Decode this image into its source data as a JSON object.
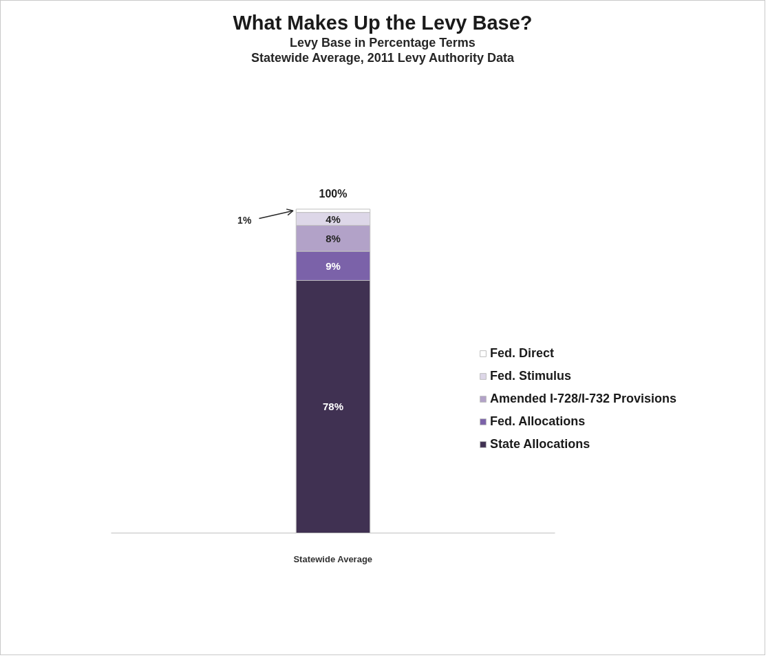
{
  "chart_data": {
    "type": "bar",
    "title": "What Makes Up the Levy Base?",
    "subtitle": "Levy Base in Percentage Terms\nStatewide Average, 2011 Levy Authority Data",
    "categories": [
      "Statewide Average"
    ],
    "stacked": true,
    "series": [
      {
        "name": "State Allocations",
        "color": "#403152",
        "values": [
          78
        ],
        "value_labels": [
          "78%"
        ]
      },
      {
        "name": "Fed. Allocations",
        "color": "#7b62a9",
        "values": [
          9
        ],
        "value_labels": [
          "9%"
        ]
      },
      {
        "name": "Amended I-728/I-732 Provisions",
        "color": "#b2a2c8",
        "values": [
          8
        ],
        "value_labels": [
          "8%"
        ]
      },
      {
        "name": "Fed. Stimulus",
        "color": "#ddd7e8",
        "values": [
          4
        ],
        "value_labels": [
          "4%"
        ]
      },
      {
        "name": "Fed. Direct",
        "color": "#ffffff",
        "values": [
          1
        ],
        "value_labels": [
          "1%"
        ]
      }
    ],
    "totals": [
      "100%"
    ],
    "legend": "right"
  }
}
